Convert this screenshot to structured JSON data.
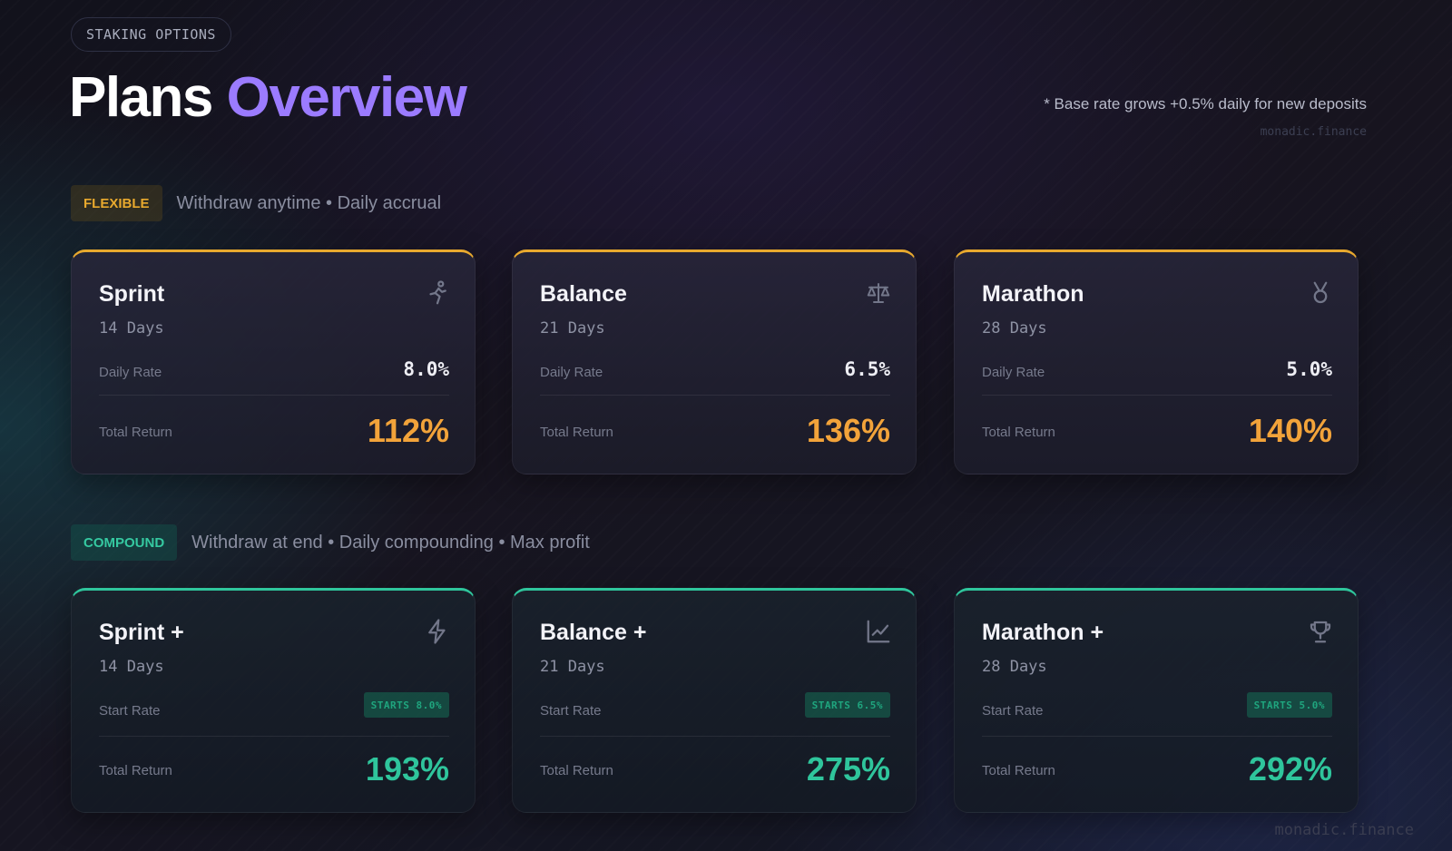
{
  "header": {
    "tag": "STAKING OPTIONS",
    "title_main": "Plans",
    "title_accent": "Overview",
    "note": "* Base rate grows +0.5% daily for new deposits",
    "brand": "monadic.finance"
  },
  "sections": {
    "flexible": {
      "badge": "FLEXIBLE",
      "description": "Withdraw anytime • Daily accrual",
      "accent_color": "#e8a92e",
      "plans": [
        {
          "name": "Sprint",
          "days": "14 Days",
          "rate_label": "Daily Rate",
          "rate": "8.0%",
          "return_label": "Total Return",
          "total_return": "112%",
          "icon": "runner-icon"
        },
        {
          "name": "Balance",
          "days": "21 Days",
          "rate_label": "Daily Rate",
          "rate": "6.5%",
          "return_label": "Total Return",
          "total_return": "136%",
          "icon": "scale-icon"
        },
        {
          "name": "Marathon",
          "days": "28 Days",
          "rate_label": "Daily Rate",
          "rate": "5.0%",
          "return_label": "Total Return",
          "total_return": "140%",
          "icon": "medal-icon"
        }
      ]
    },
    "compound": {
      "badge": "COMPOUND",
      "description": "Withdraw at end • Daily compounding • Max profit",
      "accent_color": "#2fc59c",
      "plans": [
        {
          "name": "Sprint +",
          "days": "14 Days",
          "rate_label": "Start Rate",
          "rate": "STARTS 8.0%",
          "return_label": "Total Return",
          "total_return": "193%",
          "icon": "lightning-icon"
        },
        {
          "name": "Balance +",
          "days": "21 Days",
          "rate_label": "Start Rate",
          "rate": "STARTS 6.5%",
          "return_label": "Total Return",
          "total_return": "275%",
          "icon": "chart-line-icon"
        },
        {
          "name": "Marathon +",
          "days": "28 Days",
          "rate_label": "Start Rate",
          "rate": "STARTS 5.0%",
          "return_label": "Total Return",
          "total_return": "292%",
          "icon": "trophy-icon"
        }
      ]
    }
  },
  "footer": {
    "brand": "monadic.finance"
  }
}
